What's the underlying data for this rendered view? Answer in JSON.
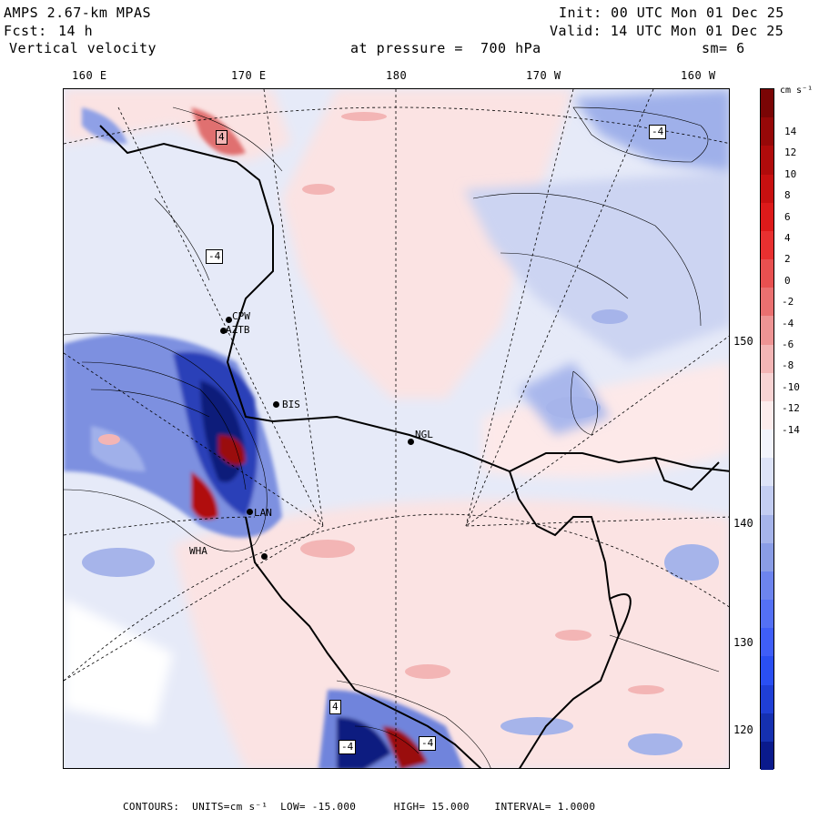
{
  "header": {
    "model": "AMPS 2.67-km MPAS",
    "init": "Init: 00 UTC Mon 01 Dec 25",
    "fcst_label": "Fcst:",
    "fcst_value": "14 h",
    "valid": "Valid: 14 UTC Mon 01 Dec 25",
    "field": "Vertical velocity",
    "pressure": "at pressure =  700 hPa",
    "smoothing": "sm= 6"
  },
  "lon_labels": [
    "160 E",
    "170 E",
    "180",
    "170 W",
    "160 W"
  ],
  "lat_labels": [
    "150 W",
    "140 W",
    "130 W",
    "120 W"
  ],
  "colorbar": {
    "units": "cm s⁻¹",
    "labels": [
      "14",
      "12",
      "10",
      "8",
      "6",
      "4",
      "2",
      "0",
      "-2",
      "-4",
      "-6",
      "-8",
      "-10",
      "-12",
      "-14"
    ],
    "colors": [
      "#0a1a8c",
      "#1530b0",
      "#1f3fd6",
      "#2a4ff2",
      "#3f5ef8",
      "#5470f4",
      "#6d84ee",
      "#8a9de6",
      "#a6b4ea",
      "#c3cdf2",
      "#dde3f8",
      "#f2f4fc",
      "#fcecec",
      "#f8d3d3",
      "#f3b5b5",
      "#ee9494",
      "#ea7070",
      "#e85050",
      "#e83030",
      "#dd1a1a",
      "#c81010",
      "#b00b0b",
      "#960808",
      "#7a0505"
    ]
  },
  "stations": [
    "CPW",
    "AZTB",
    "BIS",
    "NGL",
    "LAN",
    "WHA"
  ],
  "contour_boxes": [
    "-4",
    "-4",
    "4",
    "-4",
    "4",
    "-4"
  ],
  "footer": {
    "contours": "CONTOURS:",
    "units": "UNITS=cm s⁻¹",
    "low": "LOW= -15.000",
    "high": "HIGH= 15.000",
    "interval": "INTERVAL= 1.0000"
  }
}
